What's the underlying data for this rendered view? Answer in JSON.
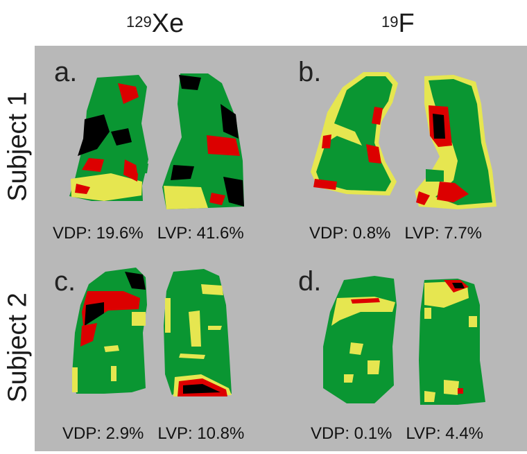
{
  "columns": [
    {
      "sup": "129",
      "symbol": "Xe"
    },
    {
      "sup": "19",
      "symbol": "F"
    }
  ],
  "rows": [
    "Subject 1",
    "Subject 2"
  ],
  "panels": [
    {
      "letter": "a.",
      "vdp": "VDP: 19.6%",
      "lvp": "LVP: 41.6%"
    },
    {
      "letter": "b.",
      "vdp": "VDP: 0.8%",
      "lvp": "LVP: 7.7%"
    },
    {
      "letter": "c.",
      "vdp": "VDP: 2.9%",
      "lvp": "LVP: 10.8%"
    },
    {
      "letter": "d.",
      "vdp": "VDP: 0.1%",
      "lvp": "LVP: 4.4%"
    }
  ],
  "colors": {
    "panel_bg": "#b8b8b8",
    "ventilated": "#0a9632",
    "low": "#e6e650",
    "defect": "#dc0000",
    "none": "#000000"
  }
}
